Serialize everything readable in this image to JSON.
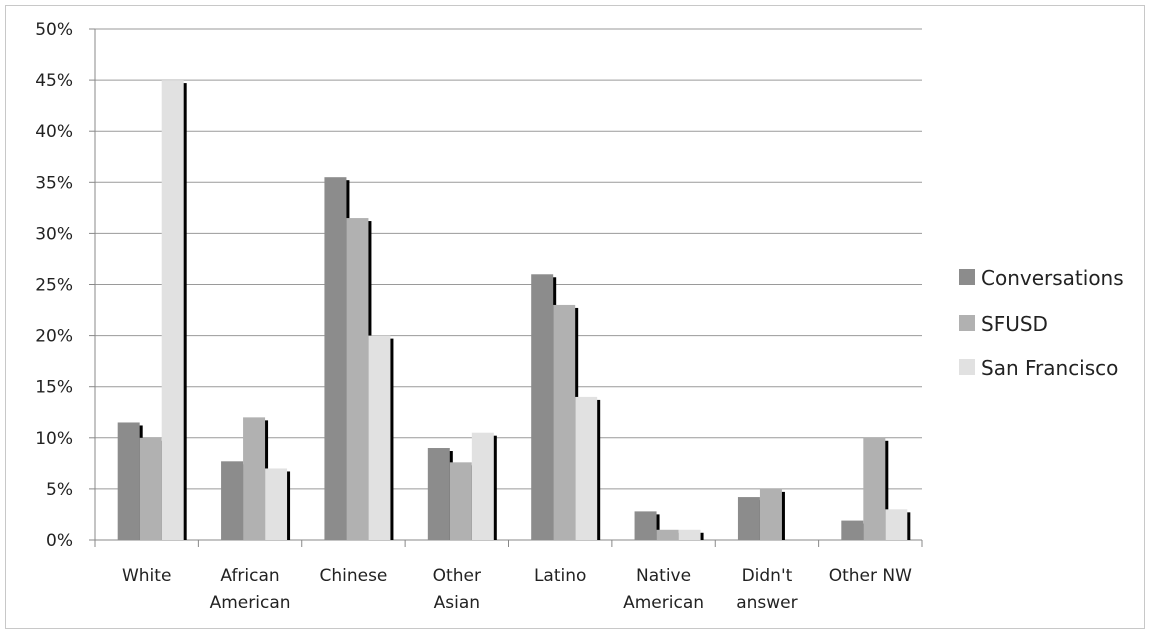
{
  "chart_data": {
    "type": "bar",
    "categories": [
      [
        "White"
      ],
      [
        "African",
        "American"
      ],
      [
        "Chinese"
      ],
      [
        "Other",
        "Asian"
      ],
      [
        "Latino"
      ],
      [
        "Native",
        "American"
      ],
      [
        "Didn't",
        "answer"
      ],
      [
        "Other NW"
      ]
    ],
    "series": [
      {
        "name": "Conversations",
        "color": "#8c8c8c",
        "values": [
          11.5,
          7.7,
          35.5,
          9.0,
          26.0,
          2.8,
          4.2,
          1.9
        ]
      },
      {
        "name": "SFUSD",
        "color": "#b1b1b1",
        "values": [
          10.0,
          12.0,
          31.5,
          7.6,
          23.0,
          1.0,
          5.0,
          10.0
        ]
      },
      {
        "name": "San Francisco",
        "color": "#e1e1e1",
        "values": [
          45.0,
          7.0,
          20.0,
          10.5,
          14.0,
          1.0,
          0,
          3.0
        ]
      }
    ],
    "ylim": [
      0,
      50
    ],
    "yticks": [
      0,
      5,
      10,
      15,
      20,
      25,
      30,
      35,
      40,
      45,
      50
    ],
    "ytick_suffix": "%",
    "grid": true,
    "legend_position": "right",
    "title": "",
    "xlabel": "",
    "ylabel": ""
  }
}
